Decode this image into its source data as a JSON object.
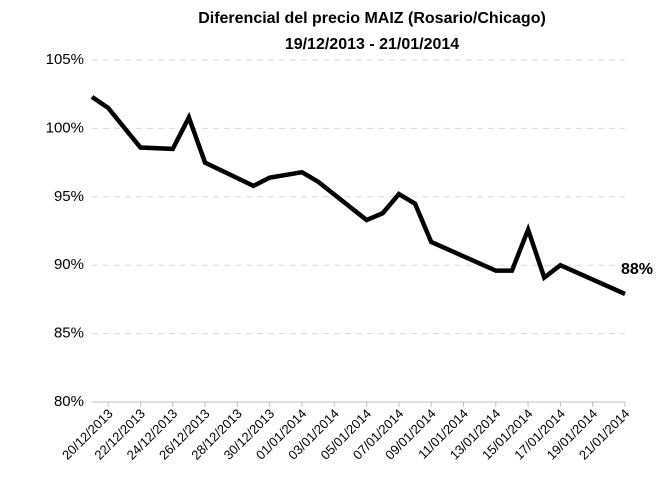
{
  "chart_data": {
    "type": "line",
    "title": "Diferencial del precio MAIZ (Rosario/Chicago)",
    "subtitle": "19/12/2013 - 21/01/2014",
    "x": [
      "19/12/2013",
      "20/12/2013",
      "22/12/2013",
      "24/12/2013",
      "25/12/2013",
      "26/12/2013",
      "29/12/2013",
      "30/12/2013",
      "01/01/2014",
      "02/01/2014",
      "05/01/2014",
      "06/01/2014",
      "07/01/2014",
      "08/01/2014",
      "09/01/2014",
      "13/01/2014",
      "14/01/2014",
      "15/01/2014",
      "16/01/2014",
      "17/01/2014",
      "21/01/2014"
    ],
    "series": [
      {
        "name": "Diferencial",
        "color": "#000000",
        "values": [
          102.3,
          101.5,
          98.6,
          98.5,
          100.8,
          97.5,
          95.8,
          96.4,
          96.8,
          96.1,
          93.3,
          93.8,
          95.2,
          94.5,
          91.7,
          89.6,
          89.6,
          92.6,
          89.1,
          90.0,
          87.9
        ],
        "value_labels": [
          null,
          null,
          null,
          null,
          null,
          null,
          null,
          null,
          null,
          null,
          null,
          null,
          null,
          null,
          null,
          null,
          null,
          null,
          null,
          null,
          "88%"
        ]
      }
    ],
    "xlim": [
      "19/12/2013",
      "21/01/2014"
    ],
    "xticks": [
      "20/12/2013",
      "22/12/2013",
      "24/12/2013",
      "26/12/2013",
      "28/12/2013",
      "30/12/2013",
      "01/01/2014",
      "03/01/2014",
      "05/01/2014",
      "07/01/2014",
      "09/01/2014",
      "11/01/2014",
      "13/01/2014",
      "15/01/2014",
      "17/01/2014",
      "19/01/2014",
      "21/01/2014"
    ],
    "ylim": [
      80,
      105
    ],
    "yticks": [
      {
        "value": 80,
        "label": "80%"
      },
      {
        "value": 85,
        "label": "85%"
      },
      {
        "value": 90,
        "label": "90%"
      },
      {
        "value": 95,
        "label": "95%"
      },
      {
        "value": 100,
        "label": "100%"
      },
      {
        "value": 105,
        "label": "105%"
      }
    ],
    "grid": true
  }
}
